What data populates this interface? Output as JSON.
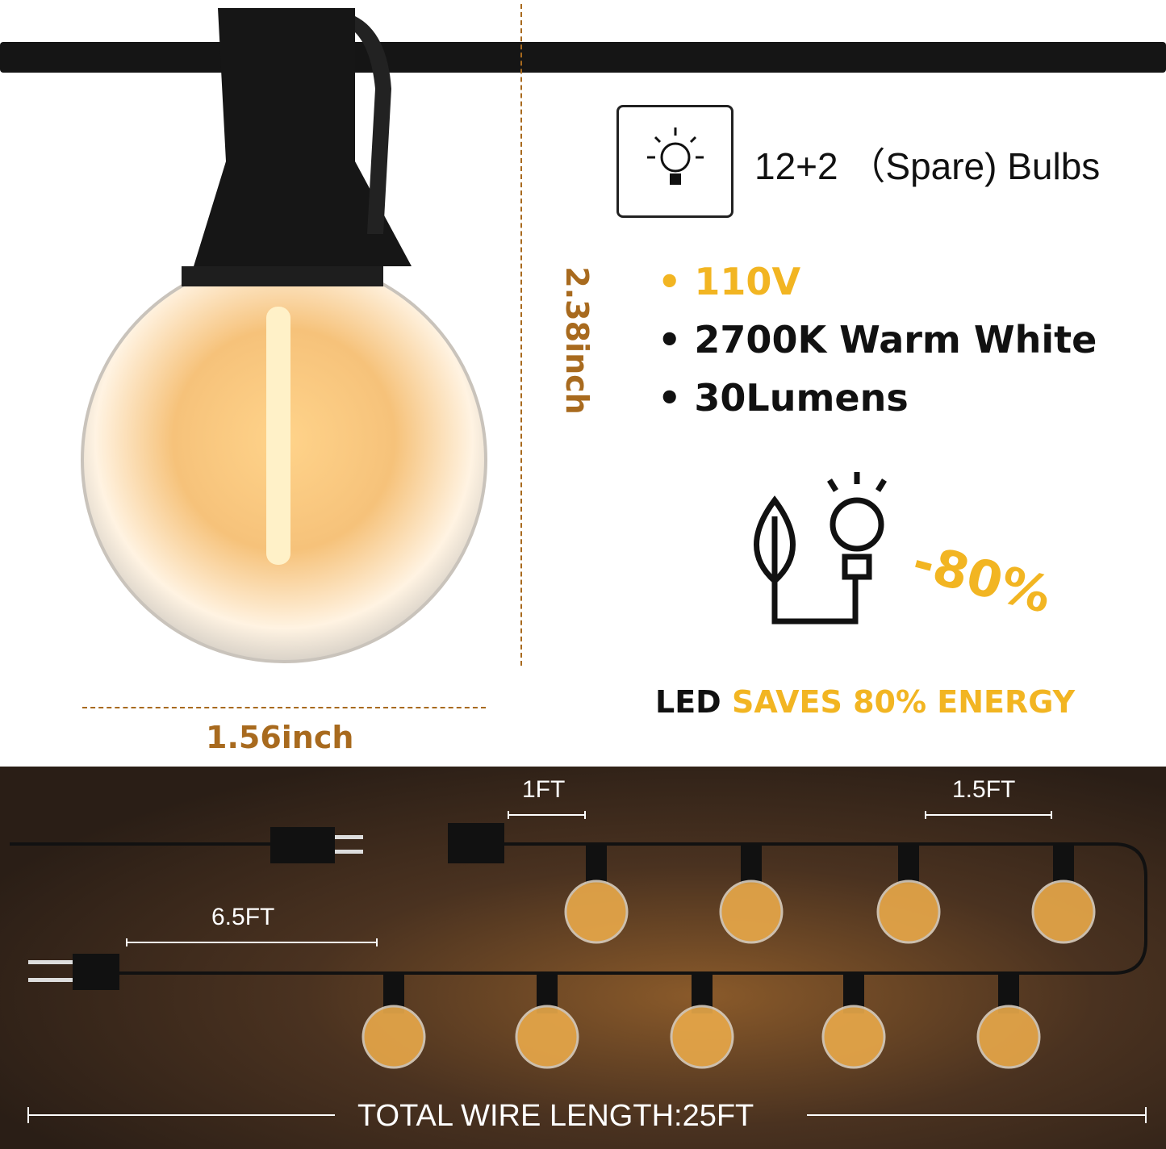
{
  "bulb_count": {
    "icon": "light-bulb-icon",
    "text": "12+2 （Spare) Bulbs"
  },
  "specs": [
    {
      "text": "110V",
      "color": "#f2b522"
    },
    {
      "text": "2700K Warm White",
      "color": "#111111"
    },
    {
      "text": "30Lumens",
      "color": "#111111"
    }
  ],
  "energy": {
    "percent": "-80%",
    "led_prefix": "LED",
    "led_suffix": "SAVES 80% ENERGY",
    "accent": "#f2b522"
  },
  "dimensions": {
    "height": "2.38inch",
    "width": "1.56inch",
    "color": "#a86a1e"
  },
  "wire": {
    "spacing_short": "1FT",
    "spacing_long": "1.5FT",
    "lead": "6.5FT",
    "total": "TOTAL WIRE LENGTH:25FT"
  }
}
